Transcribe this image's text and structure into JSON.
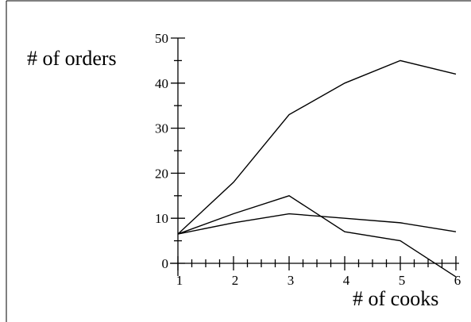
{
  "chart_data": {
    "type": "line",
    "title": "",
    "xlabel": "# of cooks",
    "ylabel": "# of orders",
    "x": [
      1,
      2,
      3,
      4,
      5,
      6
    ],
    "xlim": [
      1,
      6
    ],
    "ylim": [
      0,
      50
    ],
    "xticks": [
      "1",
      "2",
      "3",
      "4",
      "5",
      "6"
    ],
    "yticks": [
      "0",
      "10",
      "20",
      "30",
      "40",
      "50"
    ],
    "grid": false,
    "legend": "none",
    "series": [
      {
        "values": [
          6.5,
          18,
          33,
          40,
          45,
          42
        ]
      },
      {
        "values": [
          6.5,
          9,
          11,
          10,
          9,
          7
        ]
      },
      {
        "values": [
          6.5,
          11,
          15,
          7,
          5,
          -3
        ]
      }
    ]
  }
}
